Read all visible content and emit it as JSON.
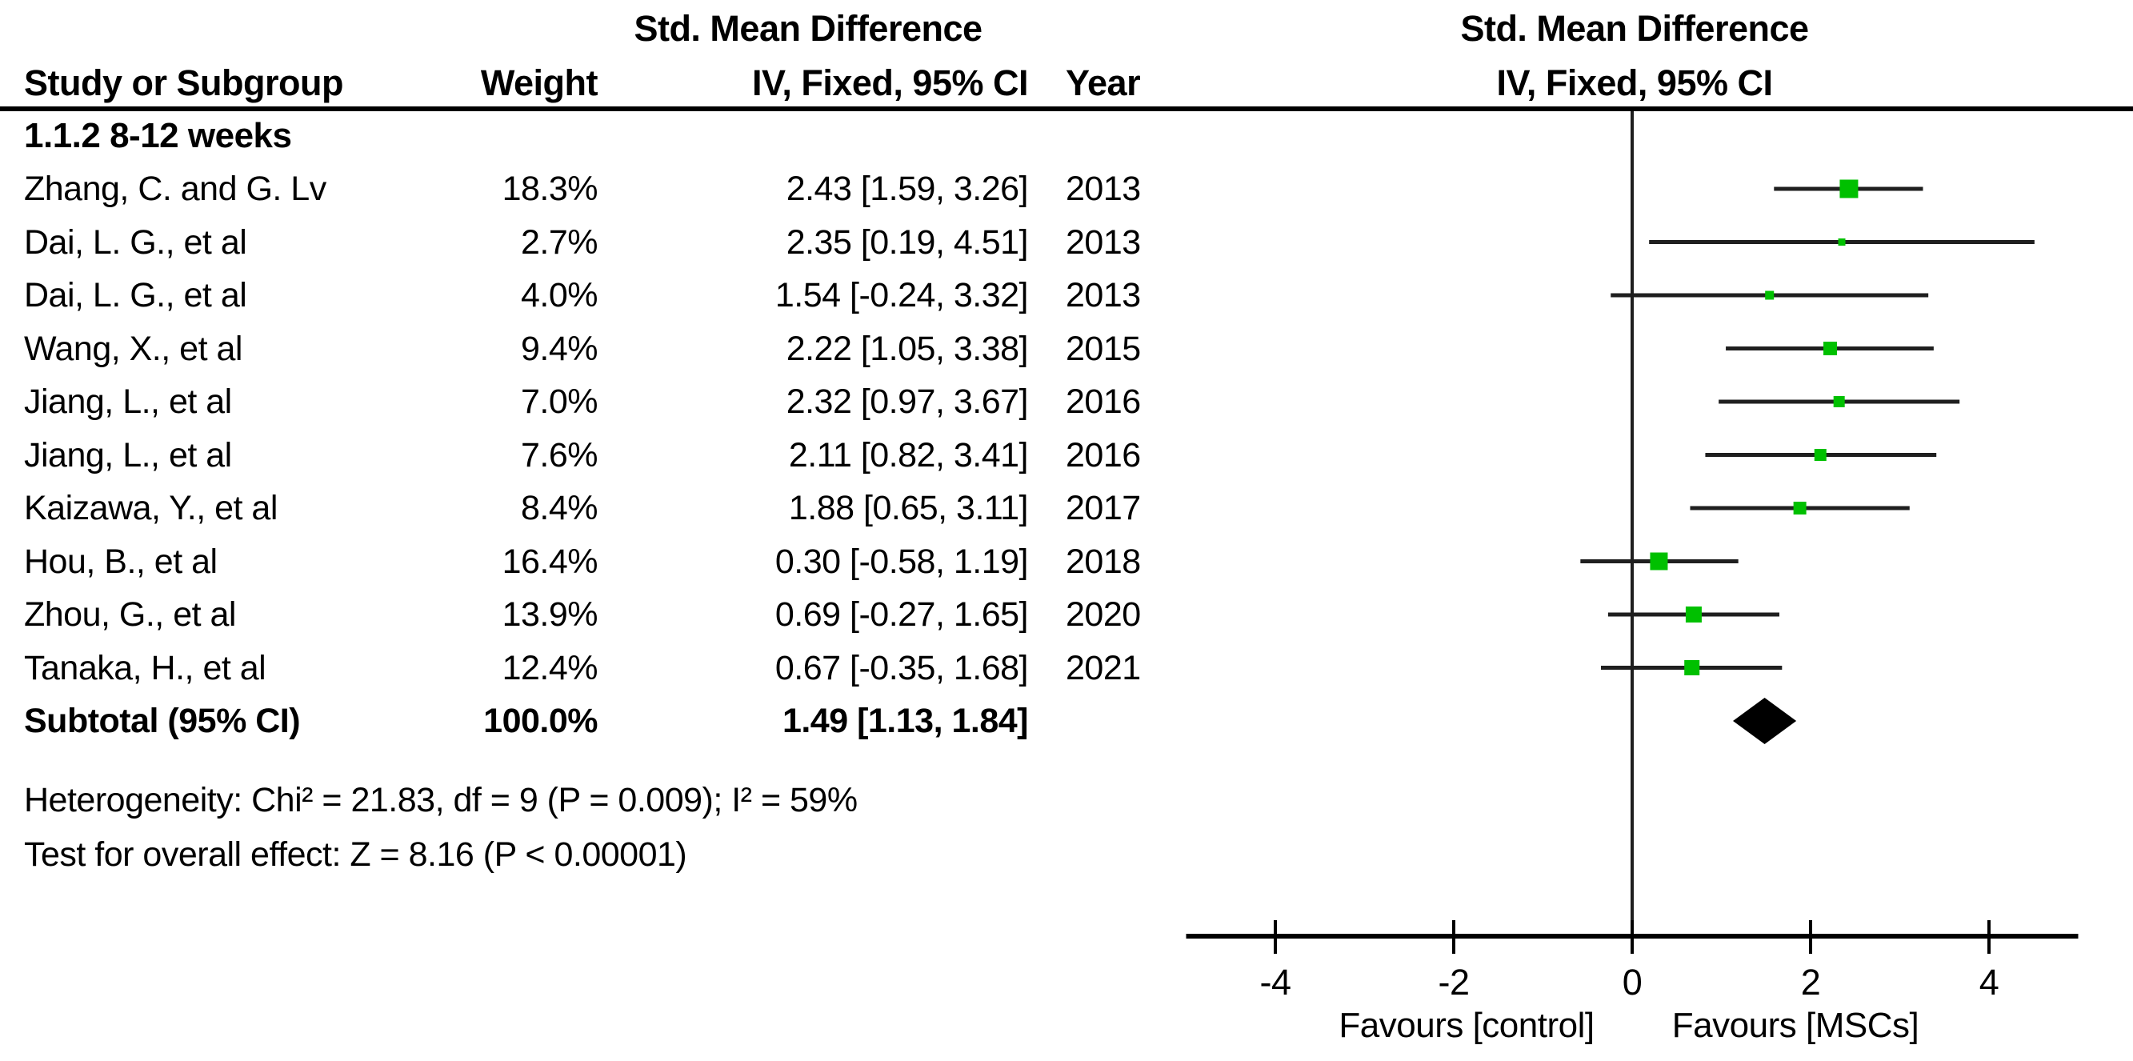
{
  "headers": {
    "smd": "Std. Mean Difference",
    "method_ci": "IV, Fixed, 95% CI",
    "study": "Study or Subgroup",
    "weight": "Weight",
    "year": "Year"
  },
  "chart_data": {
    "type": "forest",
    "subgroup_label": "1.1.2 8-12 weeks",
    "effect_measure": "Std. Mean Difference",
    "method": "IV, Fixed, 95% CI",
    "studies": [
      {
        "name": "Zhang, C. and G. Lv",
        "weight": "18.3%",
        "weight_pct": 18.3,
        "est": 2.43,
        "lo": 1.59,
        "hi": 3.26,
        "ci_text": "2.43 [1.59, 3.26]",
        "year": "2013"
      },
      {
        "name": "Dai, L. G., et al",
        "weight": "2.7%",
        "weight_pct": 2.7,
        "est": 2.35,
        "lo": 0.19,
        "hi": 4.51,
        "ci_text": "2.35 [0.19, 4.51]",
        "year": "2013"
      },
      {
        "name": "Dai, L. G., et al",
        "weight": "4.0%",
        "weight_pct": 4.0,
        "est": 1.54,
        "lo": -0.24,
        "hi": 3.32,
        "ci_text": "1.54 [-0.24, 3.32]",
        "year": "2013"
      },
      {
        "name": "Wang, X., et al",
        "weight": "9.4%",
        "weight_pct": 9.4,
        "est": 2.22,
        "lo": 1.05,
        "hi": 3.38,
        "ci_text": "2.22 [1.05, 3.38]",
        "year": "2015"
      },
      {
        "name": "Jiang, L., et al",
        "weight": "7.0%",
        "weight_pct": 7.0,
        "est": 2.32,
        "lo": 0.97,
        "hi": 3.67,
        "ci_text": "2.32 [0.97, 3.67]",
        "year": "2016"
      },
      {
        "name": "Jiang, L., et al",
        "weight": "7.6%",
        "weight_pct": 7.6,
        "est": 2.11,
        "lo": 0.82,
        "hi": 3.41,
        "ci_text": "2.11 [0.82, 3.41]",
        "year": "2016"
      },
      {
        "name": "Kaizawa, Y., et al",
        "weight": "8.4%",
        "weight_pct": 8.4,
        "est": 1.88,
        "lo": 0.65,
        "hi": 3.11,
        "ci_text": "1.88 [0.65, 3.11]",
        "year": "2017"
      },
      {
        "name": "Hou, B., et al",
        "weight": "16.4%",
        "weight_pct": 16.4,
        "est": 0.3,
        "lo": -0.58,
        "hi": 1.19,
        "ci_text": "0.30 [-0.58, 1.19]",
        "year": "2018"
      },
      {
        "name": "Zhou, G., et al",
        "weight": "13.9%",
        "weight_pct": 13.9,
        "est": 0.69,
        "lo": -0.27,
        "hi": 1.65,
        "ci_text": "0.69 [-0.27, 1.65]",
        "year": "2020"
      },
      {
        "name": "Tanaka, H., et al",
        "weight": "12.4%",
        "weight_pct": 12.4,
        "est": 0.67,
        "lo": -0.35,
        "hi": 1.68,
        "ci_text": "0.67 [-0.35, 1.68]",
        "year": "2021"
      }
    ],
    "subtotal": {
      "label": "Subtotal (95% CI)",
      "weight": "100.0%",
      "est": 1.49,
      "lo": 1.13,
      "hi": 1.84,
      "ci_text": "1.49 [1.13, 1.84]"
    },
    "heterogeneity": "Heterogeneity: Chi² = 21.83, df = 9 (P = 0.009); I² = 59%",
    "overall_effect": "Test for overall effect: Z = 8.16 (P < 0.00001)",
    "axis": {
      "ticks": [
        -4,
        -2,
        0,
        2,
        4
      ],
      "xlim": [
        -5,
        5
      ],
      "grid": false
    },
    "favours_left": "Favours [control]",
    "favours_right": "Favours [MSCs]",
    "marker_color": "#00C000",
    "line_color": "#1f1f1f",
    "axis_color": "#000000",
    "diamond_color": "#000000"
  }
}
